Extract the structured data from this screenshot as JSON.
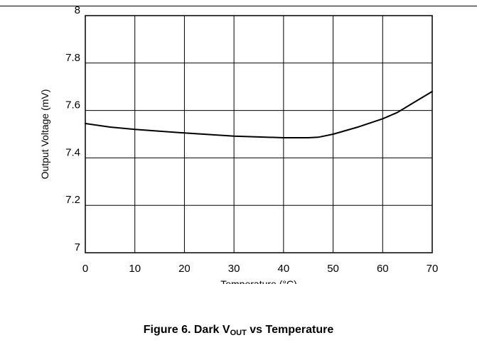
{
  "chart_data": {
    "type": "line",
    "xlabel": "Temperature (°C)",
    "ylabel": "Output Voltage (mV)",
    "xlim": [
      0,
      70
    ],
    "ylim": [
      7,
      8
    ],
    "x_ticks": [
      "0",
      "10",
      "20",
      "30",
      "40",
      "50",
      "60",
      "70"
    ],
    "y_ticks": [
      "7",
      "7.2",
      "7.4",
      "7.6",
      "7.8",
      "8"
    ],
    "grid": true,
    "series": [
      {
        "x": [
          0,
          5,
          10,
          20,
          30,
          40,
          45,
          47,
          50,
          55,
          60,
          63,
          66,
          70
        ],
        "values": [
          7.545,
          7.53,
          7.52,
          7.505,
          7.492,
          7.485,
          7.485,
          7.487,
          7.5,
          7.53,
          7.565,
          7.592,
          7.63,
          7.68
        ]
      }
    ]
  },
  "caption": {
    "prefix": "Figure 6. Dark V",
    "subscript": "OUT",
    "suffix": " vs Temperature"
  },
  "colors": {
    "line": "#000000",
    "grid": "#000000"
  }
}
